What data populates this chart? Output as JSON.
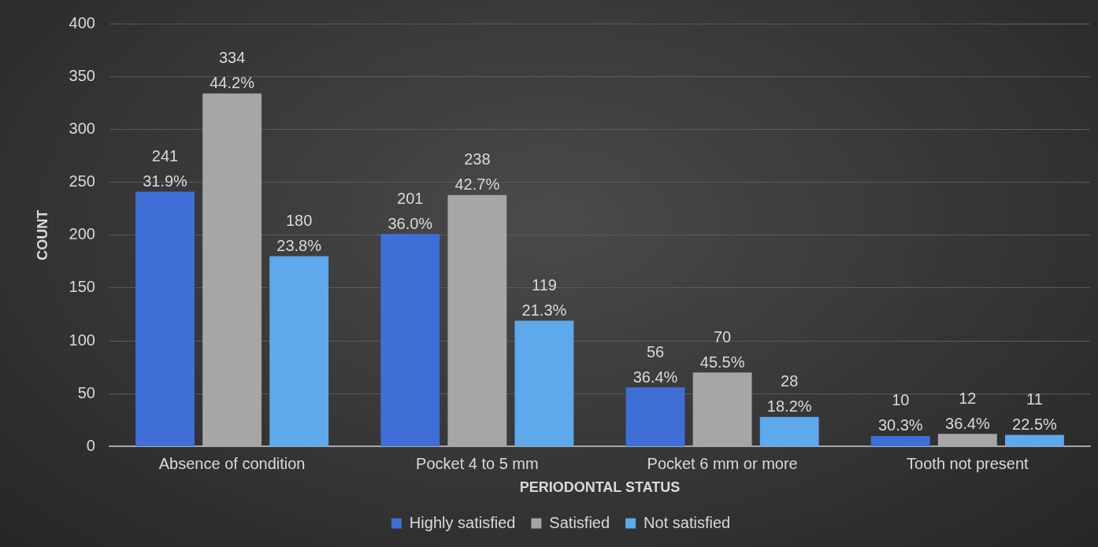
{
  "chart_data": {
    "type": "bar",
    "xlabel": "PERIODONTAL STATUS",
    "ylabel": "COUNT",
    "categories": [
      "Absence of condition",
      "Pocket 4 to 5 mm",
      "Pocket 6 mm or more",
      "Tooth not present"
    ],
    "series": [
      {
        "name": "Highly satisfied",
        "color": "#3f6fd6",
        "values": [
          241,
          201,
          56,
          10
        ],
        "value_labels": [
          "241\n31.9%",
          "201\n36.0%",
          "56\n36.4%",
          "10\n30.3%"
        ]
      },
      {
        "name": "Satisfied",
        "color": "#a6a6a6",
        "values": [
          334,
          238,
          70,
          12
        ],
        "value_labels": [
          "334\n44.2%",
          "238\n42.7%",
          "70\n45.5%",
          "12\n36.4%"
        ]
      },
      {
        "name": "Not satisfied",
        "color": "#5ea8ec",
        "values": [
          180,
          119,
          28,
          11
        ],
        "value_labels": [
          "180\n23.8%",
          "119\n21.3%",
          "28\n18.2%",
          "11\n22.5%"
        ]
      }
    ],
    "ylim": [
      0,
      400
    ],
    "yticks": [
      0,
      50,
      100,
      150,
      200,
      250,
      300,
      350,
      400
    ],
    "grid": "y",
    "legend": "bottom"
  }
}
